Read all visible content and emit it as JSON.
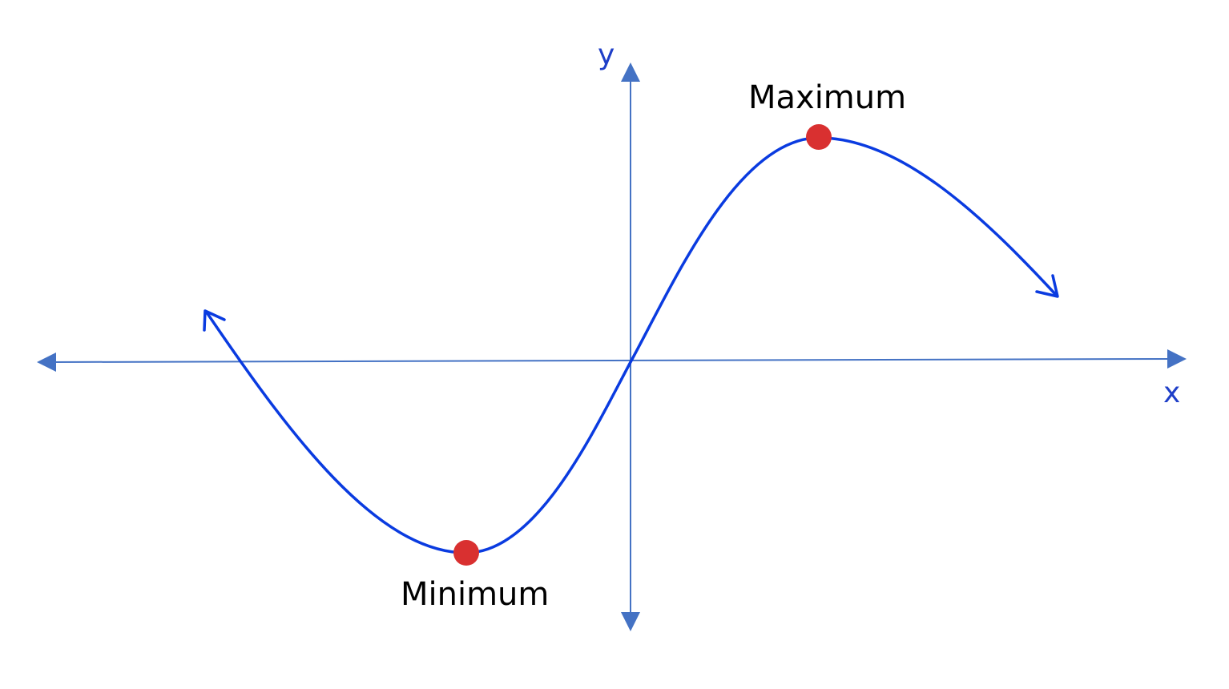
{
  "diagram": {
    "x_axis_label": "x",
    "y_axis_label": "y",
    "minimum_label": "Minimum",
    "maximum_label": "Maximum",
    "axis_color": "#4472C4",
    "curve_color": "#0A3BE0",
    "point_color": "#D93030"
  }
}
